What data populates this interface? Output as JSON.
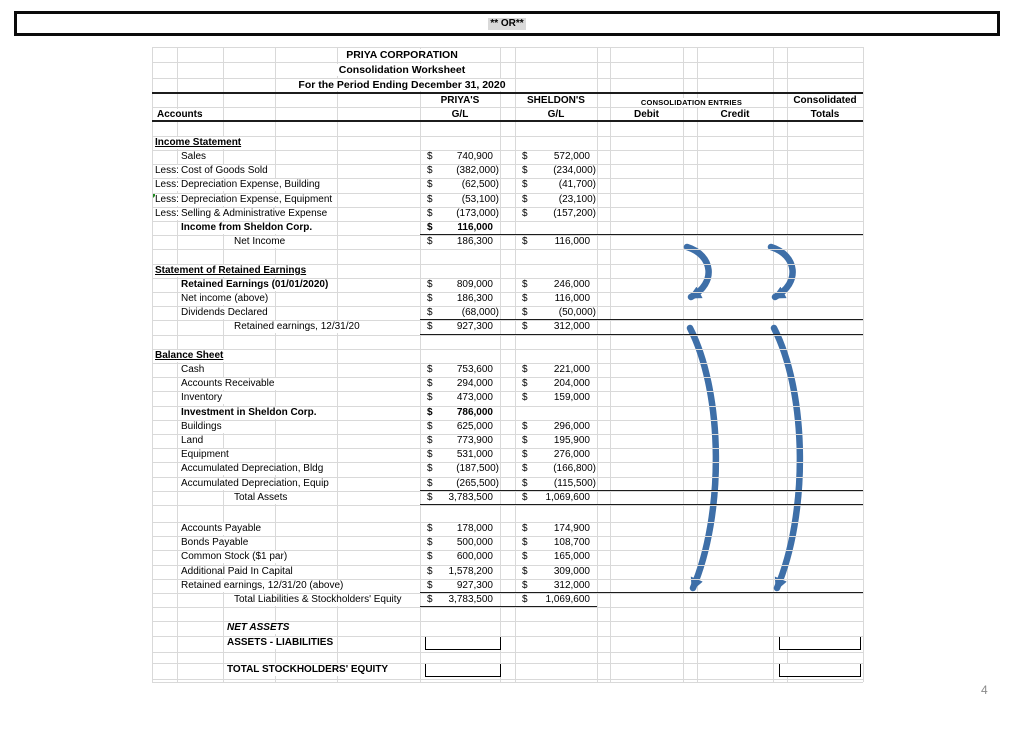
{
  "banner": {
    "label": "** OR**"
  },
  "page_number": "4",
  "sheet": {
    "title": {
      "line1": "PRIYA CORPORATION",
      "line2": "Consolidation Worksheet",
      "line3": "For  the Period Ending December 31, 2020"
    },
    "header": {
      "accounts": "Accounts",
      "priya_top": "PRIYA'S",
      "priya_bottom": "G/L",
      "sheldon_top": "SHELDON'S",
      "sheldon_bottom": "G/L",
      "consolidation_entries": "CONSOLIDATION ENTRIES",
      "debit": "Debit",
      "credit": "Credit",
      "consolidated_top": "Consolidated",
      "consolidated_bottom": "Totals"
    },
    "rows": [
      {
        "type": "blank"
      },
      {
        "type": "section",
        "label": "Income Statement"
      },
      {
        "type": "item",
        "label": "Sales",
        "priya": "740,900",
        "sheldon": "572,000"
      },
      {
        "type": "item",
        "prefix": "Less:",
        "label": "Cost of Goods Sold",
        "priya": "(382,000)",
        "sheldon": "(234,000)"
      },
      {
        "type": "item",
        "prefix": "Less:",
        "label": "Depreciation Expense, Building",
        "priya": "(62,500)",
        "sheldon": "(41,700)"
      },
      {
        "type": "item",
        "prefix": "Less:",
        "label": "Depreciation Expense, Equipment",
        "priya": "(53,100)",
        "sheldon": "(23,100)",
        "corner_marker": true
      },
      {
        "type": "item",
        "prefix": "Less:",
        "label": "Selling & Administrative Expense",
        "priya": "(173,000)",
        "sheldon": "(157,200)"
      },
      {
        "type": "item",
        "label": "Income from Sheldon Corp.",
        "bold": true,
        "amount_bold": true,
        "priya": "116,000",
        "rule": "full"
      },
      {
        "type": "total",
        "label": "Net Income",
        "priya": "186,300",
        "sheldon": "116,000"
      },
      {
        "type": "blank"
      },
      {
        "type": "section",
        "label": "Statement of Retained Earnings"
      },
      {
        "type": "item",
        "label": "Retained Earnings (01/01/2020)",
        "bold": true,
        "priya": "809,000",
        "sheldon": "246,000"
      },
      {
        "type": "item",
        "label": "Net income (above)",
        "priya": "186,300",
        "sheldon": "116,000"
      },
      {
        "type": "item",
        "label": "Dividends Declared",
        "priya": "(68,000)",
        "sheldon": "(50,000)",
        "rule": "full"
      },
      {
        "type": "total",
        "label": "Retained earnings, 12/31/20",
        "priya": "927,300",
        "sheldon": "312,000",
        "rule": "full"
      },
      {
        "type": "blank"
      },
      {
        "type": "section",
        "label": "Balance Sheet"
      },
      {
        "type": "item",
        "label": "Cash",
        "priya": "753,600",
        "sheldon": "221,000"
      },
      {
        "type": "item",
        "label": "Accounts Receivable",
        "priya": "294,000",
        "sheldon": "204,000"
      },
      {
        "type": "item",
        "label": "Inventory",
        "priya": "473,000",
        "sheldon": "159,000"
      },
      {
        "type": "item",
        "label": "Investment in Sheldon Corp.",
        "bold": true,
        "amount_bold": true,
        "priya": "786,000"
      },
      {
        "type": "item",
        "label": "Buildings",
        "priya": "625,000",
        "sheldon": "296,000"
      },
      {
        "type": "item",
        "label": "Land",
        "priya": "773,900",
        "sheldon": "195,900"
      },
      {
        "type": "item",
        "label": "Equipment",
        "priya": "531,000",
        "sheldon": "276,000"
      },
      {
        "type": "item",
        "label": "Accumulated Depreciation, Bldg",
        "priya": "(187,500)",
        "sheldon": "(166,800)"
      },
      {
        "type": "item",
        "label": "Accumulated Depreciation, Equip",
        "priya": "(265,500)",
        "sheldon": "(115,500)",
        "rule": "full"
      },
      {
        "type": "total",
        "label": "Total Assets",
        "priya": "3,783,500",
        "sheldon": "1,069,600",
        "rule": "full"
      },
      {
        "type": "blank"
      },
      {
        "type": "item",
        "label": "Accounts Payable",
        "priya": "178,000",
        "sheldon": "174,900"
      },
      {
        "type": "item",
        "label": "Bonds Payable",
        "priya": "500,000",
        "sheldon": "108,700"
      },
      {
        "type": "item",
        "label": "Common Stock ($1 par)",
        "priya": "600,000",
        "sheldon": "165,000"
      },
      {
        "type": "item",
        "label": "Additional Paid In Capital",
        "priya": "1,578,200",
        "sheldon": "309,000"
      },
      {
        "type": "item",
        "label": "Retained earnings, 12/31/20 (above)",
        "priya": "927,300",
        "sheldon": "312,000",
        "rule": "full"
      },
      {
        "type": "total",
        "label": "Total Liabilities & Stockholders' Equity",
        "priya": "3,783,500",
        "sheldon": "1,069,600",
        "rule": "amounts"
      },
      {
        "type": "blank"
      },
      {
        "type": "label",
        "label": "NET ASSETS",
        "bold": true,
        "italic": true
      },
      {
        "type": "boxes",
        "key": "assets-liabilities",
        "label": "ASSETS - LIABILITIES",
        "bold": true
      },
      {
        "type": "blank"
      },
      {
        "type": "boxes",
        "key": "total-stockholders-equity",
        "label": "TOTAL STOCKHOLDERS' EQUITY",
        "bold": true
      },
      {
        "type": "blank"
      }
    ]
  },
  "colors": {
    "arrow_blue": "#3e6fa8",
    "grid_gray": "#d9d9d9",
    "comment_marker_green": "#1f8a1f",
    "banner_highlight": "#d9d9d9",
    "page_number_gray": "#8a8a8a"
  }
}
